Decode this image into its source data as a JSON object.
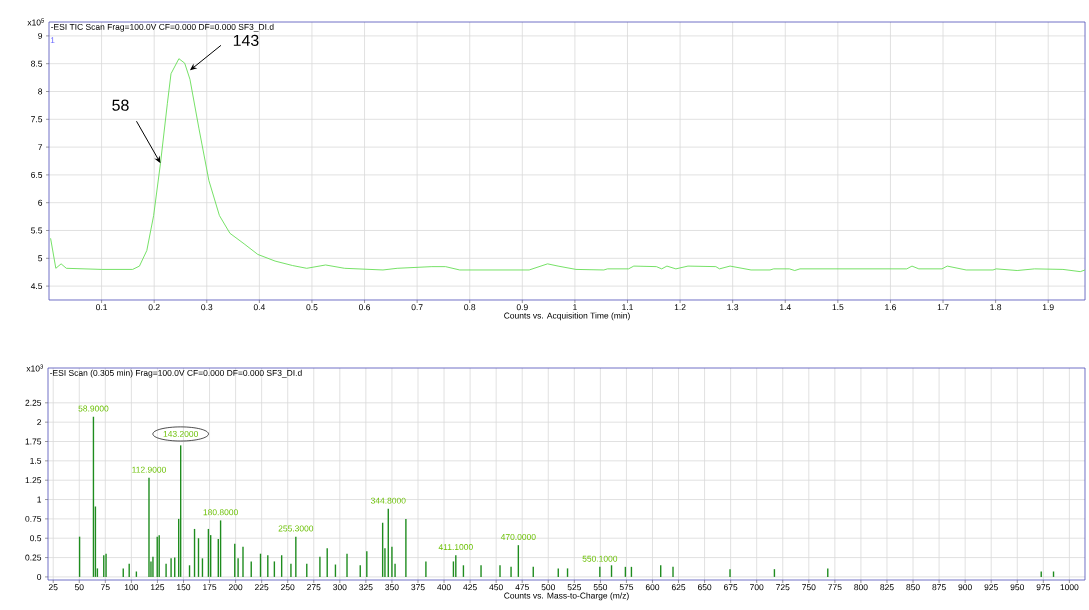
{
  "chart_data": [
    {
      "type": "line",
      "title": "-ESI TIC Scan Frag=100.0V CF=0.000 DF=0.000 SF3_DI.d",
      "xlabel": "Counts vs. Acquisition Time (min)",
      "ylabel": "x10$^{5}$",
      "x": [
        0.003,
        0.013,
        0.023,
        0.033,
        0.1,
        0.159,
        0.172,
        0.186,
        0.199,
        0.212,
        0.225,
        0.232,
        0.247,
        0.258,
        0.268,
        0.285,
        0.304,
        0.324,
        0.344,
        0.371,
        0.397,
        0.43,
        0.463,
        0.49,
        0.526,
        0.562,
        0.635,
        0.662,
        0.728,
        0.754,
        0.781,
        0.913,
        0.948,
        0.968,
        1.002,
        1.055,
        1.062,
        1.102,
        1.112,
        1.155,
        1.165,
        1.175,
        1.192,
        1.215,
        1.268,
        1.275,
        1.295,
        1.335,
        1.371,
        1.378,
        1.408,
        1.418,
        1.428,
        1.631,
        1.641,
        1.654,
        1.698,
        1.708,
        1.744,
        1.795,
        1.801,
        1.841,
        1.874,
        1.928,
        1.961,
        1.97
      ],
      "values": [
        5.36,
        4.82,
        4.9,
        4.82,
        4.8,
        4.8,
        4.86,
        5.14,
        5.77,
        6.71,
        7.78,
        8.32,
        8.59,
        8.51,
        8.22,
        7.34,
        6.4,
        5.77,
        5.45,
        5.26,
        5.07,
        4.95,
        4.87,
        4.82,
        4.88,
        4.82,
        4.79,
        4.82,
        4.85,
        4.85,
        4.79,
        4.79,
        4.9,
        4.86,
        4.8,
        4.79,
        4.81,
        4.81,
        4.86,
        4.85,
        4.81,
        4.86,
        4.81,
        4.86,
        4.85,
        4.81,
        4.86,
        4.79,
        4.79,
        4.81,
        4.81,
        4.78,
        4.81,
        4.81,
        4.86,
        4.81,
        4.81,
        4.86,
        4.79,
        4.79,
        4.81,
        4.78,
        4.81,
        4.8,
        4.76,
        4.79
      ],
      "color": "#66dd55",
      "xlim": [
        0,
        1.97
      ],
      "ylim": [
        4.25,
        9.25
      ],
      "xticks": [
        0.1,
        0.2,
        0.3,
        0.4,
        0.5,
        0.6,
        0.7,
        0.8,
        0.9,
        1,
        1.1,
        1.2,
        1.3,
        1.4,
        1.5,
        1.6,
        1.7,
        1.8,
        1.9
      ],
      "yticks": [
        4.5,
        5,
        5.5,
        6,
        6.5,
        7,
        7.5,
        8,
        8.5,
        9
      ],
      "grid": true,
      "annotations": [
        {
          "text": "58",
          "x": 0.212,
          "y": 6.71
        },
        {
          "text": "143",
          "x": 0.268,
          "y": 8.38
        },
        "1"
      ]
    },
    {
      "type": "bar",
      "title": "-ESI Scan (0.305 min)  Frag=100.0V CF=0.000 DF=0.000 SF3_DI.d",
      "xlabel": "Counts vs. Mass-to-Charge (m/z)",
      "ylabel": "x10$^{3}$",
      "x": [
        50.3,
        63.6,
        65.5,
        67.4,
        73.5,
        75.7,
        92.2,
        97.9,
        104.8,
        116.9,
        118.8,
        120.7,
        124.8,
        126.7,
        133.3,
        138.1,
        141.6,
        145.4,
        147.3,
        155.8,
        160.6,
        164.4,
        168.2,
        173.9,
        176.1,
        183.4,
        185.6,
        199.2,
        202.4,
        207.1,
        215,
        223.9,
        230.9,
        237.2,
        244.2,
        253.1,
        257.8,
        268.3,
        280.9,
        287.9,
        295.8,
        306.9,
        319.6,
        325.9,
        341.1,
        343.3,
        346.5,
        350,
        353,
        363.4,
        382.6,
        409,
        411.3,
        418.6,
        435.5,
        453.7,
        464.3,
        471.3,
        485.6,
        509.6,
        518.5,
        549.5,
        560.7,
        574,
        579.8,
        607.9,
        619.7,
        674.4,
        717,
        768.2,
        973,
        984.8
      ],
      "values": [
        0.52,
        2.07,
        0.91,
        0.11,
        0.28,
        0.3,
        0.11,
        0.17,
        0.07,
        1.28,
        0.2,
        0.26,
        0.52,
        0.54,
        0.17,
        0.24,
        0.25,
        0.75,
        1.7,
        0.15,
        0.62,
        0.5,
        0.24,
        0.62,
        0.54,
        0.49,
        0.73,
        0.43,
        0.24,
        0.39,
        0.2,
        0.3,
        0.28,
        0.2,
        0.28,
        0.17,
        0.52,
        0.17,
        0.26,
        0.37,
        0.16,
        0.3,
        0.15,
        0.33,
        0.7,
        0.37,
        0.88,
        0.39,
        0.17,
        0.75,
        0.2,
        0.2,
        0.28,
        0.15,
        0.15,
        0.15,
        0.13,
        0.41,
        0.13,
        0.11,
        0.11,
        0.13,
        0.15,
        0.13,
        0.13,
        0.15,
        0.13,
        0.1,
        0.1,
        0.11,
        0.07,
        0.07
      ],
      "color": "#1e8c1e",
      "xlim": [
        20,
        1015
      ],
      "ylim": [
        -0.04,
        2.7
      ],
      "xticks": [
        25,
        50,
        75,
        100,
        125,
        150,
        175,
        200,
        225,
        250,
        275,
        300,
        325,
        350,
        375,
        400,
        425,
        450,
        475,
        500,
        525,
        550,
        575,
        600,
        625,
        650,
        675,
        700,
        725,
        750,
        775,
        800,
        825,
        850,
        875,
        900,
        925,
        950,
        975,
        1000
      ],
      "yticks": [
        0,
        0.25,
        0.5,
        0.75,
        1,
        1.25,
        1.5,
        1.75,
        2,
        2.25
      ],
      "grid": true,
      "annotations": [
        {
          "text": "58.9000",
          "x": 63.6,
          "y": 2.07
        },
        {
          "text": "112.9000",
          "x": 116.9,
          "y": 1.28
        },
        {
          "text": "143.2000",
          "x": 147.3,
          "y": 1.7
        },
        {
          "text": "180.8000",
          "x": 185.6,
          "y": 0.73
        },
        {
          "text": "255.3000",
          "x": 257.8,
          "y": 0.52
        },
        {
          "text": "344.8000",
          "x": 346.5,
          "y": 0.88
        },
        {
          "text": "411.1000",
          "x": 411.3,
          "y": 0.28
        },
        {
          "text": "470.0000",
          "x": 471.3,
          "y": 0.41
        },
        {
          "text": "550.1000",
          "x": 549.5,
          "y": 0.13
        }
      ]
    }
  ]
}
